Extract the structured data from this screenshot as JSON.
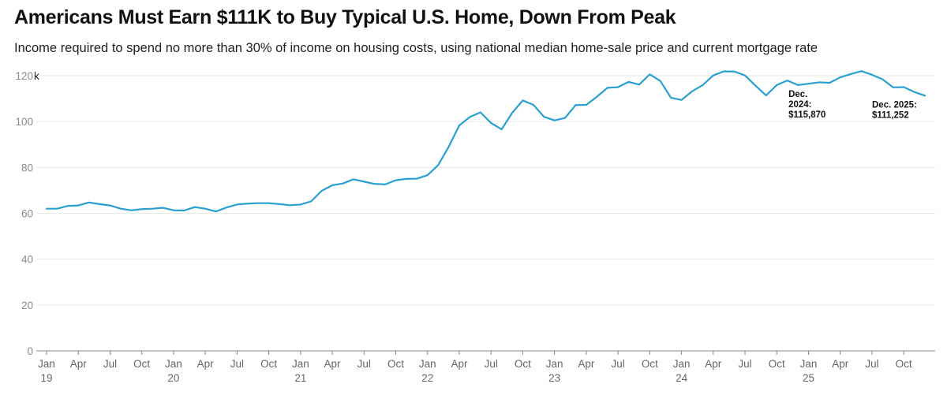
{
  "header": {
    "title": "Americans Must Earn $111K to Buy Typical U.S. Home, Down From Peak",
    "subtitle": "Income required to spend no more than 30% of income on housing costs, using national median home-sale price and current mortgage rate"
  },
  "colors": {
    "line": "#2a9fd0",
    "grid": "#e6e6e6",
    "axis": "#888888"
  },
  "chart_data": {
    "type": "line",
    "title": "Americans Must Earn $111K to Buy Typical U.S. Home, Down From Peak",
    "subtitle": "Income required to spend no more than 30% of income on housing costs, using national median home-sale price and current mortgage rate",
    "xlabel": "",
    "ylabel": "",
    "y_unit_suffix": "k",
    "ylim": [
      0,
      120
    ],
    "yticks": [
      0,
      20,
      40,
      60,
      80,
      100,
      120
    ],
    "ytick_labels": [
      "0",
      "20",
      "40",
      "60",
      "80",
      "100",
      "120"
    ],
    "grid": true,
    "x_start": "Jan 2019",
    "x_tick_labels": [
      {
        "month": "Jan",
        "year": "19",
        "index": 0
      },
      {
        "month": "Apr",
        "index": 3
      },
      {
        "month": "Jul",
        "index": 6
      },
      {
        "month": "Oct",
        "index": 9
      },
      {
        "month": "Jan",
        "year": "20",
        "index": 12
      },
      {
        "month": "Apr",
        "index": 15
      },
      {
        "month": "Jul",
        "index": 18
      },
      {
        "month": "Oct",
        "index": 21
      },
      {
        "month": "Jan",
        "year": "21",
        "index": 24
      },
      {
        "month": "Apr",
        "index": 27
      },
      {
        "month": "Jul",
        "index": 30
      },
      {
        "month": "Oct",
        "index": 33
      },
      {
        "month": "Jan",
        "year": "22",
        "index": 36
      },
      {
        "month": "Apr",
        "index": 39
      },
      {
        "month": "Jul",
        "index": 42
      },
      {
        "month": "Oct",
        "index": 45
      },
      {
        "month": "Jan",
        "year": "23",
        "index": 48
      },
      {
        "month": "Apr",
        "index": 51
      },
      {
        "month": "Jul",
        "index": 54
      },
      {
        "month": "Oct",
        "index": 57
      },
      {
        "month": "Jan",
        "year": "24",
        "index": 60
      },
      {
        "month": "Apr",
        "index": 63
      },
      {
        "month": "Jul",
        "index": 66
      },
      {
        "month": "Oct",
        "index": 69
      },
      {
        "month": "Jan",
        "year": "25",
        "index": 72
      },
      {
        "month": "Apr",
        "index": 75
      },
      {
        "month": "Jul",
        "index": 78
      },
      {
        "month": "Oct",
        "index": 81
      }
    ],
    "series": [
      {
        "name": "Income required",
        "values": [
          62.0,
          62.0,
          63.2,
          63.4,
          64.7,
          64.0,
          63.4,
          62.0,
          61.3,
          61.8,
          62.0,
          62.4,
          61.3,
          61.2,
          62.7,
          62.0,
          60.8,
          62.5,
          63.8,
          64.2,
          64.4,
          64.4,
          64.0,
          63.5,
          63.8,
          65.2,
          69.8,
          72.2,
          73.0,
          74.8,
          73.8,
          72.8,
          72.6,
          74.4,
          75.0,
          75.1,
          76.6,
          81.0,
          89.0,
          98.3,
          102.0,
          104.0,
          99.4,
          96.6,
          103.8,
          109.2,
          107.3,
          102.1,
          100.5,
          101.6,
          107.2,
          107.3,
          110.8,
          114.7,
          115.0,
          117.3,
          116.1,
          120.6,
          117.7,
          110.4,
          109.4,
          113.2,
          115.9,
          120.1,
          121.9,
          121.8,
          120.1,
          115.6,
          111.4,
          115.9,
          117.9,
          115.9,
          116.5,
          117.1,
          116.9,
          119.3,
          120.7,
          122.0,
          120.4,
          118.4,
          114.9,
          115.0,
          112.9,
          111.3
        ]
      }
    ],
    "annotations": [
      {
        "index": 71,
        "lines": [
          "Dec.",
          "2024:",
          "$115,870"
        ]
      },
      {
        "index": 83,
        "lines": [
          "Dec. 2025:",
          "$111,252"
        ]
      }
    ]
  }
}
